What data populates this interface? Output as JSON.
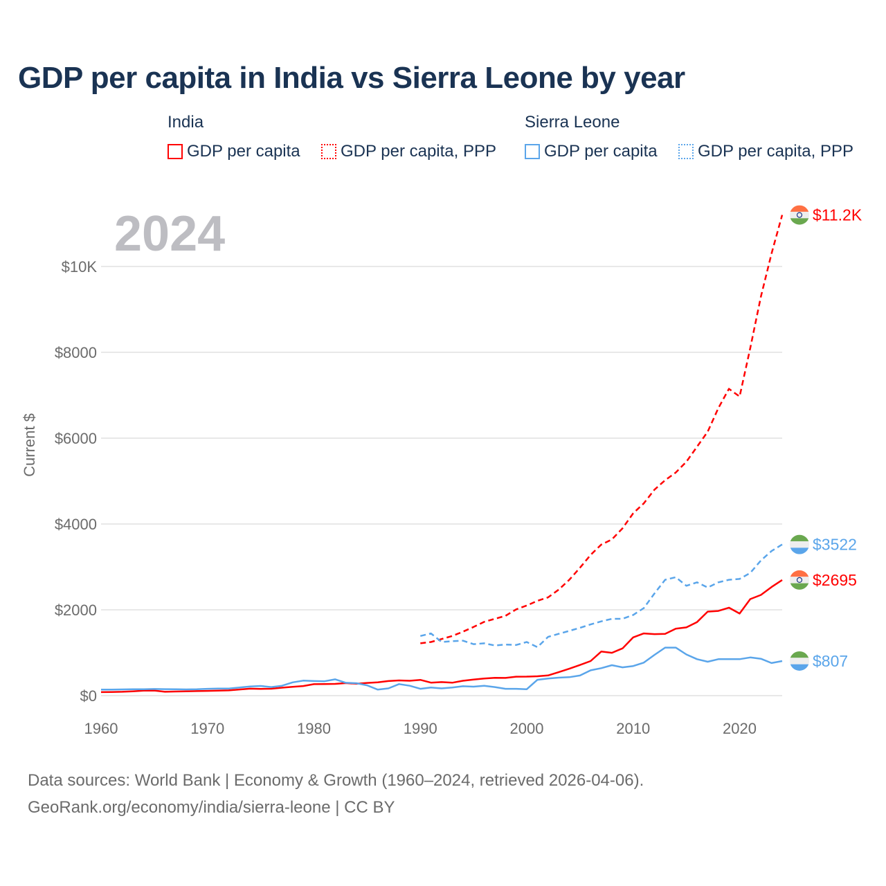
{
  "title": "GDP per capita in India vs Sierra Leone by year",
  "legend": {
    "groups": [
      {
        "name": "India",
        "items": [
          "GDP per capita",
          "GDP per capita, PPP"
        ],
        "color": "#ff0000"
      },
      {
        "name": "Sierra Leone",
        "items": [
          "GDP per capita",
          "GDP per capita, PPP"
        ],
        "color": "#5aa5ea"
      }
    ]
  },
  "footer": {
    "line1": "Data sources: World Bank | Economy & Growth (1960–2024, retrieved 2026-04-06).",
    "line2": "GeoRank.org/economy/india/sierra-leone | CC BY"
  },
  "chart_data": {
    "type": "line",
    "title": "GDP per capita in India vs Sierra Leone by year",
    "year_label": "2024",
    "xlabel": "",
    "ylabel": "Current $",
    "xlim": [
      1960,
      2024
    ],
    "ylim": [
      0,
      11200
    ],
    "xticks": [
      1960,
      1970,
      1980,
      1990,
      2000,
      2010,
      2020
    ],
    "yticks": [
      {
        "v": 0,
        "label": "$0"
      },
      {
        "v": 2000,
        "label": "$2000"
      },
      {
        "v": 4000,
        "label": "$4000"
      },
      {
        "v": 6000,
        "label": "$6000"
      },
      {
        "v": 8000,
        "label": "$8000"
      },
      {
        "v": 10000,
        "label": "$10K"
      }
    ],
    "grid": true,
    "series": [
      {
        "name": "India GDP per capita",
        "color": "#ff0000",
        "dash": false,
        "start": 1960,
        "end_label": "$2695",
        "values": [
          83,
          86,
          91,
          101,
          116,
          119,
          90,
          96,
          100,
          106,
          112,
          118,
          123,
          144,
          163,
          158,
          161,
          186,
          206,
          224,
          267,
          271,
          275,
          292,
          277,
          297,
          310,
          340,
          355,
          347,
          368,
          303,
          316,
          301,
          346,
          374,
          400,
          415,
          413,
          442,
          443,
          452,
          471,
          546,
          627,
          714,
          806,
          1028,
          999,
          1102,
          1358,
          1450,
          1434,
          1438,
          1560,
          1590,
          1714,
          1958,
          1974,
          2050,
          1913,
          2250,
          2347,
          2530,
          2695
        ]
      },
      {
        "name": "India GDP per capita, PPP",
        "color": "#ff0000",
        "dash": true,
        "start": 1990,
        "end_label": "$11.2K",
        "values": [
          1220,
          1250,
          1320,
          1390,
          1490,
          1600,
          1720,
          1790,
          1860,
          2010,
          2100,
          2210,
          2290,
          2470,
          2700,
          2980,
          3280,
          3520,
          3640,
          3900,
          4250,
          4480,
          4800,
          5020,
          5200,
          5450,
          5800,
          6150,
          6700,
          7150,
          6970,
          8100,
          9300,
          10300,
          11200
        ]
      },
      {
        "name": "Sierra Leone GDP per capita",
        "color": "#5aa5ea",
        "dash": false,
        "start": 1960,
        "end_label": "$807",
        "values": [
          140,
          142,
          145,
          148,
          150,
          155,
          152,
          150,
          145,
          148,
          160,
          165,
          165,
          190,
          215,
          225,
          200,
          230,
          310,
          350,
          340,
          335,
          380,
          300,
          290,
          240,
          140,
          170,
          270,
          230,
          160,
          190,
          170,
          190,
          220,
          210,
          230,
          200,
          160,
          160,
          150,
          370,
          400,
          420,
          430,
          470,
          590,
          640,
          710,
          660,
          690,
          770,
          950,
          1120,
          1120,
          960,
          850,
          790,
          850,
          850,
          850,
          890,
          860,
          760,
          807
        ]
      },
      {
        "name": "Sierra Leone GDP per capita, PPP",
        "color": "#5aa5ea",
        "dash": true,
        "start": 1990,
        "end_label": "$3522",
        "values": [
          1390,
          1450,
          1250,
          1270,
          1280,
          1200,
          1220,
          1170,
          1190,
          1180,
          1250,
          1130,
          1370,
          1440,
          1510,
          1580,
          1660,
          1730,
          1790,
          1790,
          1880,
          2040,
          2380,
          2700,
          2760,
          2560,
          2640,
          2520,
          2640,
          2700,
          2720,
          2860,
          3150,
          3370,
          3522
        ]
      }
    ]
  }
}
